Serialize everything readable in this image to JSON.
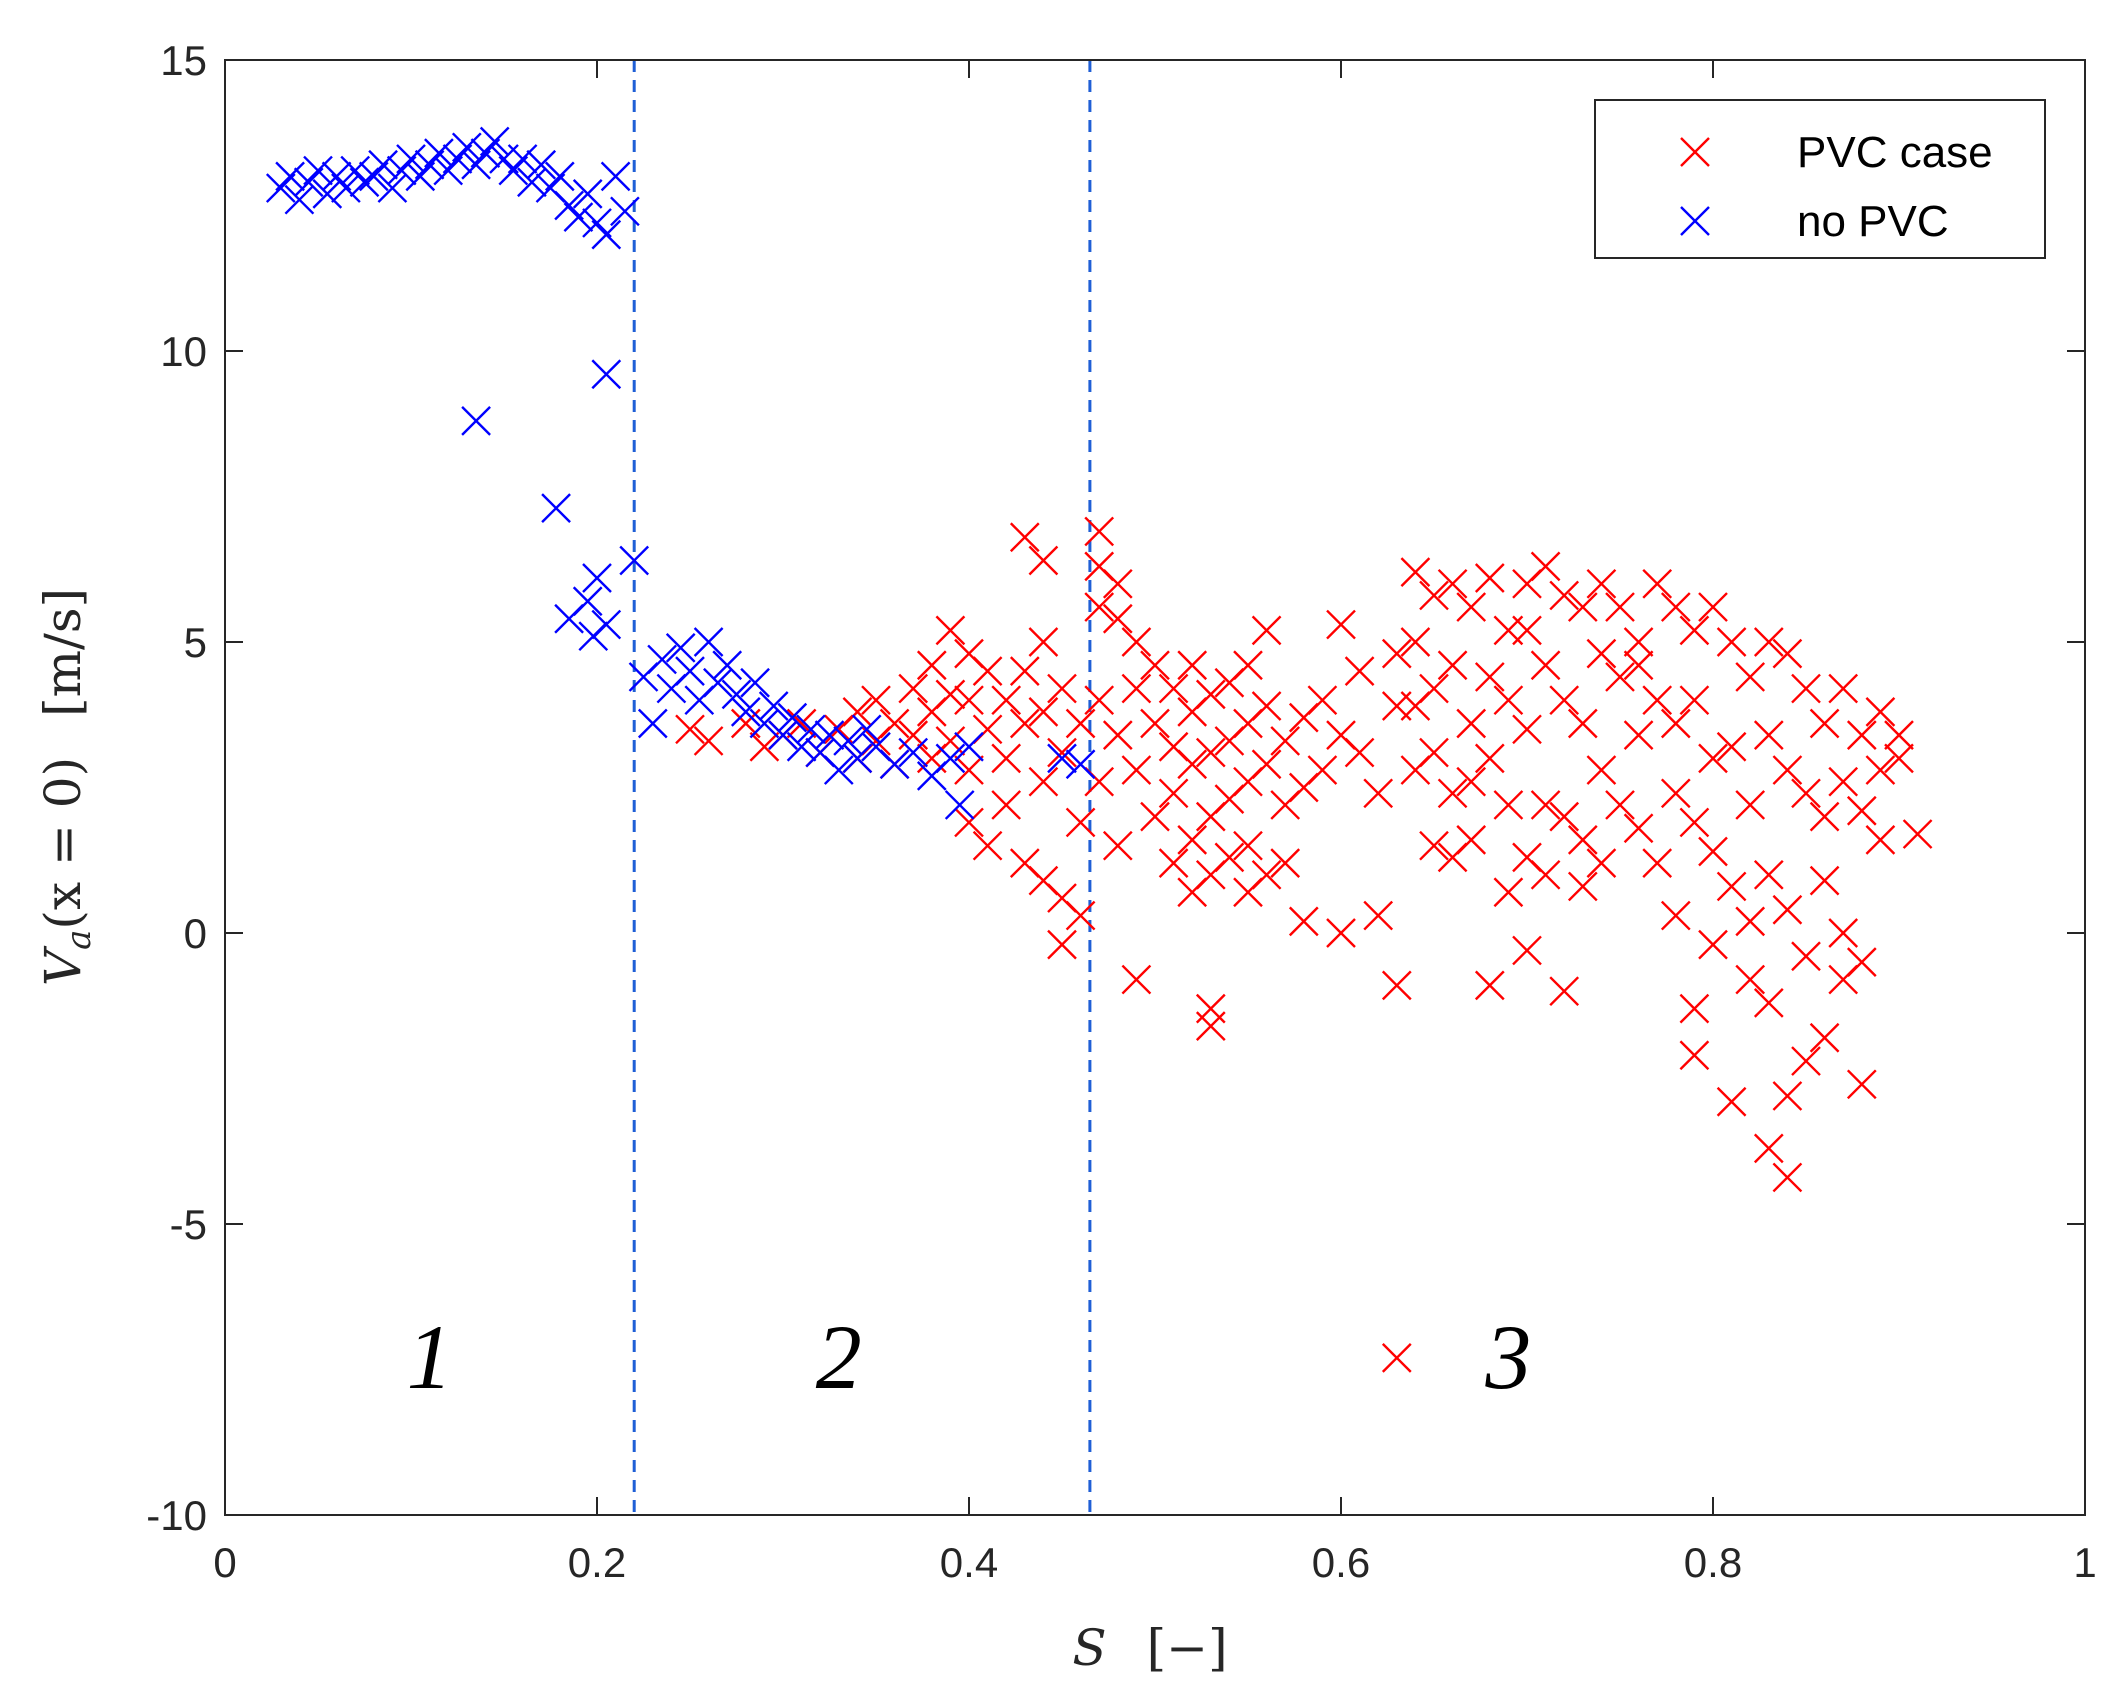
{
  "chart_data": {
    "type": "scatter",
    "title": "",
    "xlabel": "S   [−]",
    "ylabel": "Vₐ(x = 0)   [m/s]",
    "xlim": [
      0,
      1
    ],
    "ylim": [
      -10,
      15
    ],
    "xticks": [
      0,
      0.2,
      0.4,
      0.6,
      0.8,
      1
    ],
    "xtick_labels": [
      "0",
      "0.2",
      "0.4",
      "0.6",
      "0.8",
      "1"
    ],
    "yticks": [
      -10,
      -5,
      0,
      5,
      10,
      15
    ],
    "ytick_labels": [
      "-10",
      "-5",
      "0",
      "5",
      "10",
      "15"
    ],
    "grid": false,
    "legend_position": "top-right",
    "vertical_lines": [
      0.22,
      0.465
    ],
    "region_labels": [
      {
        "text": "1",
        "x": 0.11,
        "y": -7.3
      },
      {
        "text": "2",
        "x": 0.33,
        "y": -7.3
      },
      {
        "text": "3",
        "x": 0.69,
        "y": -7.3
      }
    ],
    "series": [
      {
        "name": "PVC case",
        "color": "#ff0000",
        "marker": "x",
        "points": [
          [
            0.25,
            3.5
          ],
          [
            0.26,
            3.3
          ],
          [
            0.28,
            3.6
          ],
          [
            0.29,
            3.2
          ],
          [
            0.3,
            3.4
          ],
          [
            0.31,
            3.6
          ],
          [
            0.32,
            3.1
          ],
          [
            0.33,
            3.5
          ],
          [
            0.34,
            3.8
          ],
          [
            0.34,
            3.0
          ],
          [
            0.35,
            4.0
          ],
          [
            0.35,
            3.3
          ],
          [
            0.36,
            3.6
          ],
          [
            0.36,
            2.9
          ],
          [
            0.37,
            4.2
          ],
          [
            0.37,
            3.4
          ],
          [
            0.38,
            4.6
          ],
          [
            0.38,
            3.8
          ],
          [
            0.38,
            3.0
          ],
          [
            0.39,
            5.2
          ],
          [
            0.39,
            4.1
          ],
          [
            0.39,
            3.3
          ],
          [
            0.4,
            4.8
          ],
          [
            0.4,
            4.0
          ],
          [
            0.4,
            2.8
          ],
          [
            0.4,
            1.9
          ],
          [
            0.41,
            4.5
          ],
          [
            0.41,
            3.5
          ],
          [
            0.41,
            1.5
          ],
          [
            0.42,
            4.0
          ],
          [
            0.42,
            3.0
          ],
          [
            0.42,
            2.2
          ],
          [
            0.43,
            6.8
          ],
          [
            0.43,
            4.5
          ],
          [
            0.43,
            3.6
          ],
          [
            0.43,
            1.2
          ],
          [
            0.44,
            6.4
          ],
          [
            0.44,
            5.0
          ],
          [
            0.44,
            3.8
          ],
          [
            0.44,
            2.6
          ],
          [
            0.44,
            0.9
          ],
          [
            0.45,
            4.2
          ],
          [
            0.45,
            3.1
          ],
          [
            0.45,
            0.6
          ],
          [
            0.45,
            -0.2
          ],
          [
            0.46,
            3.6
          ],
          [
            0.46,
            1.9
          ],
          [
            0.46,
            0.3
          ],
          [
            0.47,
            6.9
          ],
          [
            0.47,
            6.3
          ],
          [
            0.47,
            5.6
          ],
          [
            0.47,
            4.0
          ],
          [
            0.47,
            2.6
          ],
          [
            0.48,
            6.0
          ],
          [
            0.48,
            5.4
          ],
          [
            0.48,
            3.4
          ],
          [
            0.48,
            1.5
          ],
          [
            0.49,
            5.0
          ],
          [
            0.49,
            4.2
          ],
          [
            0.49,
            2.8
          ],
          [
            0.49,
            -0.8
          ],
          [
            0.5,
            4.6
          ],
          [
            0.5,
            3.6
          ],
          [
            0.5,
            2.0
          ],
          [
            0.51,
            4.2
          ],
          [
            0.51,
            3.2
          ],
          [
            0.51,
            2.4
          ],
          [
            0.51,
            1.2
          ],
          [
            0.52,
            4.6
          ],
          [
            0.52,
            3.8
          ],
          [
            0.52,
            2.9
          ],
          [
            0.52,
            1.6
          ],
          [
            0.52,
            0.7
          ],
          [
            0.53,
            4.1
          ],
          [
            0.53,
            3.1
          ],
          [
            0.53,
            2.0
          ],
          [
            0.53,
            1.0
          ],
          [
            0.53,
            -1.3
          ],
          [
            0.53,
            -1.6
          ],
          [
            0.54,
            4.3
          ],
          [
            0.54,
            3.3
          ],
          [
            0.54,
            2.3
          ],
          [
            0.54,
            1.3
          ],
          [
            0.55,
            4.6
          ],
          [
            0.55,
            3.6
          ],
          [
            0.55,
            2.6
          ],
          [
            0.55,
            1.5
          ],
          [
            0.55,
            0.7
          ],
          [
            0.56,
            5.2
          ],
          [
            0.56,
            3.9
          ],
          [
            0.56,
            2.9
          ],
          [
            0.56,
            1.0
          ],
          [
            0.57,
            3.3
          ],
          [
            0.57,
            2.2
          ],
          [
            0.57,
            1.2
          ],
          [
            0.58,
            3.7
          ],
          [
            0.58,
            2.5
          ],
          [
            0.58,
            0.2
          ],
          [
            0.59,
            4.0
          ],
          [
            0.59,
            2.8
          ],
          [
            0.6,
            5.3
          ],
          [
            0.6,
            3.4
          ],
          [
            0.6,
            0.0
          ],
          [
            0.61,
            4.5
          ],
          [
            0.61,
            3.1
          ],
          [
            0.62,
            2.4
          ],
          [
            0.62,
            0.3
          ],
          [
            0.63,
            4.8
          ],
          [
            0.63,
            3.9
          ],
          [
            0.63,
            -0.9
          ],
          [
            0.63,
            -7.3
          ],
          [
            0.64,
            6.2
          ],
          [
            0.64,
            5.0
          ],
          [
            0.64,
            3.9
          ],
          [
            0.64,
            2.8
          ],
          [
            0.65,
            5.8
          ],
          [
            0.65,
            4.2
          ],
          [
            0.65,
            3.1
          ],
          [
            0.65,
            1.5
          ],
          [
            0.66,
            6.0
          ],
          [
            0.66,
            4.6
          ],
          [
            0.66,
            2.4
          ],
          [
            0.66,
            1.3
          ],
          [
            0.67,
            5.6
          ],
          [
            0.67,
            3.6
          ],
          [
            0.67,
            2.6
          ],
          [
            0.67,
            1.6
          ],
          [
            0.68,
            6.1
          ],
          [
            0.68,
            4.4
          ],
          [
            0.68,
            3.0
          ],
          [
            0.68,
            -0.9
          ],
          [
            0.69,
            5.2
          ],
          [
            0.69,
            4.0
          ],
          [
            0.69,
            2.2
          ],
          [
            0.69,
            0.7
          ],
          [
            0.7,
            6.0
          ],
          [
            0.7,
            5.2
          ],
          [
            0.7,
            3.5
          ],
          [
            0.7,
            1.3
          ],
          [
            0.7,
            -0.3
          ],
          [
            0.71,
            6.3
          ],
          [
            0.71,
            4.6
          ],
          [
            0.71,
            2.2
          ],
          [
            0.71,
            1.0
          ],
          [
            0.72,
            5.8
          ],
          [
            0.72,
            4.0
          ],
          [
            0.72,
            2.0
          ],
          [
            0.72,
            -1.0
          ],
          [
            0.73,
            5.6
          ],
          [
            0.73,
            3.6
          ],
          [
            0.73,
            1.6
          ],
          [
            0.73,
            0.8
          ],
          [
            0.74,
            6.0
          ],
          [
            0.74,
            4.8
          ],
          [
            0.74,
            2.8
          ],
          [
            0.74,
            1.2
          ],
          [
            0.75,
            5.6
          ],
          [
            0.75,
            4.4
          ],
          [
            0.75,
            2.2
          ],
          [
            0.76,
            5.0
          ],
          [
            0.76,
            4.6
          ],
          [
            0.76,
            3.4
          ],
          [
            0.76,
            1.8
          ],
          [
            0.77,
            6.0
          ],
          [
            0.77,
            4.0
          ],
          [
            0.77,
            1.2
          ],
          [
            0.78,
            5.6
          ],
          [
            0.78,
            3.6
          ],
          [
            0.78,
            2.4
          ],
          [
            0.78,
            0.3
          ],
          [
            0.79,
            5.2
          ],
          [
            0.79,
            4.0
          ],
          [
            0.79,
            1.9
          ],
          [
            0.79,
            -1.3
          ],
          [
            0.79,
            -2.1
          ],
          [
            0.8,
            5.6
          ],
          [
            0.8,
            3.0
          ],
          [
            0.8,
            1.4
          ],
          [
            0.8,
            -0.2
          ],
          [
            0.81,
            5.0
          ],
          [
            0.81,
            3.2
          ],
          [
            0.81,
            0.8
          ],
          [
            0.81,
            -2.9
          ],
          [
            0.82,
            4.4
          ],
          [
            0.82,
            2.2
          ],
          [
            0.82,
            0.2
          ],
          [
            0.82,
            -0.8
          ],
          [
            0.83,
            5.0
          ],
          [
            0.83,
            3.4
          ],
          [
            0.83,
            1.0
          ],
          [
            0.83,
            -1.2
          ],
          [
            0.83,
            -3.7
          ],
          [
            0.84,
            4.8
          ],
          [
            0.84,
            2.8
          ],
          [
            0.84,
            0.4
          ],
          [
            0.84,
            -2.8
          ],
          [
            0.84,
            -4.2
          ],
          [
            0.85,
            4.2
          ],
          [
            0.85,
            2.4
          ],
          [
            0.85,
            -0.4
          ],
          [
            0.85,
            -2.2
          ],
          [
            0.86,
            3.6
          ],
          [
            0.86,
            2.0
          ],
          [
            0.86,
            0.9
          ],
          [
            0.86,
            -1.8
          ],
          [
            0.87,
            4.2
          ],
          [
            0.87,
            2.6
          ],
          [
            0.87,
            0.0
          ],
          [
            0.87,
            -0.8
          ],
          [
            0.88,
            3.4
          ],
          [
            0.88,
            2.1
          ],
          [
            0.88,
            -0.5
          ],
          [
            0.88,
            -2.6
          ],
          [
            0.89,
            3.8
          ],
          [
            0.89,
            2.8
          ],
          [
            0.89,
            1.6
          ],
          [
            0.9,
            3.4
          ],
          [
            0.9,
            3.0
          ],
          [
            0.91,
            1.7
          ]
        ]
      },
      {
        "name": "no PVC",
        "color": "#0000ff",
        "marker": "x",
        "points": [
          [
            0.03,
            12.8
          ],
          [
            0.035,
            13.0
          ],
          [
            0.04,
            12.6
          ],
          [
            0.045,
            12.9
          ],
          [
            0.05,
            13.1
          ],
          [
            0.055,
            12.7
          ],
          [
            0.06,
            13.0
          ],
          [
            0.065,
            12.8
          ],
          [
            0.07,
            13.1
          ],
          [
            0.075,
            12.9
          ],
          [
            0.08,
            13.0
          ],
          [
            0.085,
            13.2
          ],
          [
            0.09,
            12.8
          ],
          [
            0.095,
            13.1
          ],
          [
            0.1,
            13.3
          ],
          [
            0.105,
            13.0
          ],
          [
            0.11,
            13.2
          ],
          [
            0.115,
            13.4
          ],
          [
            0.12,
            13.1
          ],
          [
            0.125,
            13.3
          ],
          [
            0.13,
            13.5
          ],
          [
            0.135,
            13.2
          ],
          [
            0.14,
            13.4
          ],
          [
            0.145,
            13.6
          ],
          [
            0.15,
            13.3
          ],
          [
            0.155,
            13.1
          ],
          [
            0.16,
            13.3
          ],
          [
            0.165,
            12.9
          ],
          [
            0.17,
            13.2
          ],
          [
            0.175,
            12.8
          ],
          [
            0.18,
            13.0
          ],
          [
            0.185,
            12.5
          ],
          [
            0.19,
            12.3
          ],
          [
            0.195,
            12.7
          ],
          [
            0.2,
            12.2
          ],
          [
            0.205,
            12.0
          ],
          [
            0.21,
            13.0
          ],
          [
            0.215,
            12.4
          ],
          [
            0.135,
            8.8
          ],
          [
            0.178,
            7.3
          ],
          [
            0.185,
            5.4
          ],
          [
            0.195,
            5.7
          ],
          [
            0.198,
            5.1
          ],
          [
            0.2,
            6.1
          ],
          [
            0.205,
            5.3
          ],
          [
            0.205,
            9.6
          ],
          [
            0.22,
            6.4
          ],
          [
            0.225,
            4.4
          ],
          [
            0.23,
            3.6
          ],
          [
            0.235,
            4.7
          ],
          [
            0.24,
            4.2
          ],
          [
            0.245,
            4.9
          ],
          [
            0.25,
            4.5
          ],
          [
            0.255,
            4.0
          ],
          [
            0.26,
            5.0
          ],
          [
            0.265,
            4.3
          ],
          [
            0.27,
            4.6
          ],
          [
            0.275,
            4.1
          ],
          [
            0.28,
            3.8
          ],
          [
            0.285,
            4.3
          ],
          [
            0.29,
            3.6
          ],
          [
            0.295,
            3.9
          ],
          [
            0.3,
            3.4
          ],
          [
            0.305,
            3.7
          ],
          [
            0.31,
            3.2
          ],
          [
            0.315,
            3.5
          ],
          [
            0.32,
            3.1
          ],
          [
            0.325,
            3.4
          ],
          [
            0.33,
            2.8
          ],
          [
            0.335,
            3.3
          ],
          [
            0.34,
            3.0
          ],
          [
            0.345,
            3.5
          ],
          [
            0.35,
            3.2
          ],
          [
            0.36,
            2.9
          ],
          [
            0.37,
            3.1
          ],
          [
            0.38,
            2.7
          ],
          [
            0.39,
            3.0
          ],
          [
            0.395,
            2.2
          ],
          [
            0.4,
            3.2
          ],
          [
            0.45,
            3.0
          ],
          [
            0.46,
            2.9
          ]
        ]
      }
    ]
  },
  "labels": {
    "xlabel_var": "S",
    "xlabel_unit": "[−]",
    "ylabel_main": "V",
    "ylabel_sub": "a",
    "ylabel_arg": "(x = 0)",
    "ylabel_unit": "[m/s]",
    "legend_pvc": "PVC case",
    "legend_nopvc": "no PVC"
  }
}
